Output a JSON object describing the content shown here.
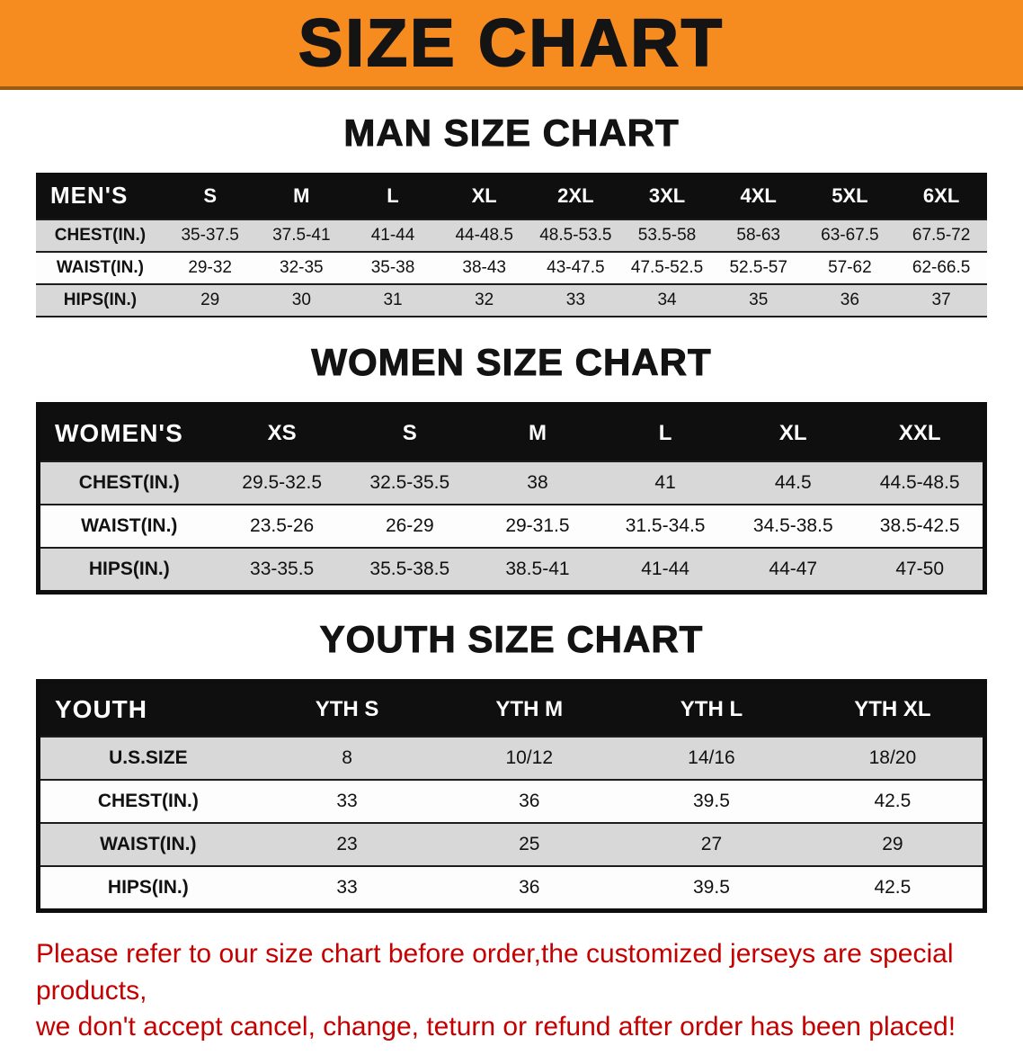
{
  "banner": {
    "title": "SIZE CHART",
    "background_color": "#F68B1F"
  },
  "sections": [
    {
      "id": "mens",
      "heading": "MAN SIZE CHART",
      "table": {
        "header": [
          "MEN'S",
          "S",
          "M",
          "L",
          "XL",
          "2XL",
          "3XL",
          "4XL",
          "5XL",
          "6XL"
        ],
        "rows": [
          {
            "label": "CHEST(IN.)",
            "values": [
              "35-37.5",
              "37.5-41",
              "41-44",
              "44-48.5",
              "48.5-53.5",
              "53.5-58",
              "58-63",
              "63-67.5",
              "67.5-72"
            ]
          },
          {
            "label": "WAIST(IN.)",
            "values": [
              "29-32",
              "32-35",
              "35-38",
              "38-43",
              "43-47.5",
              "47.5-52.5",
              "52.5-57",
              "57-62",
              "62-66.5"
            ]
          },
          {
            "label": "HIPS(IN.)",
            "values": [
              "29",
              "30",
              "31",
              "32",
              "33",
              "34",
              "35",
              "36",
              "37"
            ]
          }
        ]
      }
    },
    {
      "id": "womens",
      "heading": "WOMEN SIZE CHART",
      "table": {
        "header": [
          "WOMEN'S",
          "XS",
          "S",
          "M",
          "L",
          "XL",
          "XXL"
        ],
        "rows": [
          {
            "label": "CHEST(IN.)",
            "values": [
              "29.5-32.5",
              "32.5-35.5",
              "38",
              "41",
              "44.5",
              "44.5-48.5"
            ]
          },
          {
            "label": "WAIST(IN.)",
            "values": [
              "23.5-26",
              "26-29",
              "29-31.5",
              "31.5-34.5",
              "34.5-38.5",
              "38.5-42.5"
            ]
          },
          {
            "label": "HIPS(IN.)",
            "values": [
              "33-35.5",
              "35.5-38.5",
              "38.5-41",
              "41-44",
              "44-47",
              "47-50"
            ]
          }
        ]
      }
    },
    {
      "id": "youth",
      "heading": "YOUTH SIZE CHART",
      "table": {
        "header": [
          "YOUTH",
          "YTH S",
          "YTH M",
          "YTH L",
          "YTH XL"
        ],
        "rows": [
          {
            "label": "U.S.SIZE",
            "values": [
              "8",
              "10/12",
              "14/16",
              "18/20"
            ]
          },
          {
            "label": "CHEST(IN.)",
            "values": [
              "33",
              "36",
              "39.5",
              "42.5"
            ]
          },
          {
            "label": "WAIST(IN.)",
            "values": [
              "23",
              "25",
              "27",
              "29"
            ]
          },
          {
            "label": "HIPS(IN.)",
            "values": [
              "33",
              "36",
              "39.5",
              "42.5"
            ]
          }
        ]
      }
    }
  ],
  "disclaimer": {
    "color": "#C40000",
    "line1": "Please refer to our size chart before order,the customized jerseys are special products,",
    "line2": "we don't accept cancel, change, teturn or refund after order has been placed!"
  }
}
